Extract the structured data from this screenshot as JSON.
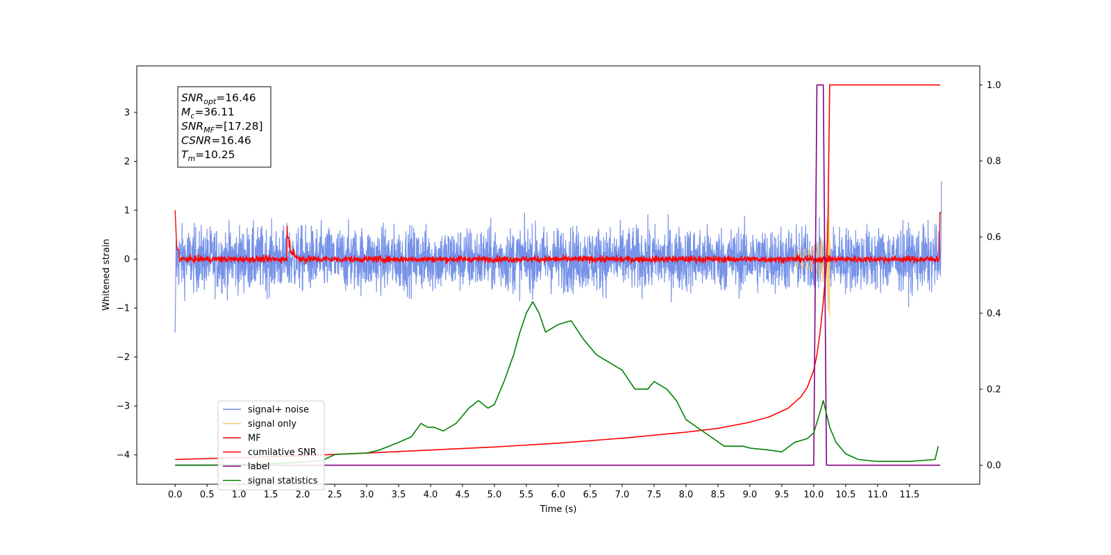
{
  "chart_data": {
    "type": "line",
    "title": "",
    "xlabel": "Time (s)",
    "ylabel": "Whitened strain",
    "y2label": "",
    "xlim": [
      -0.6,
      12.6
    ],
    "ylim": [
      -4.6,
      3.95
    ],
    "y2lim": [
      -0.05,
      1.05
    ],
    "grid": false,
    "legend_position": "lower-left",
    "x_ticks": [
      "0.0",
      "0.5",
      "1.0",
      "1.5",
      "2.0",
      "2.5",
      "3.0",
      "3.5",
      "4.0",
      "4.5",
      "5.0",
      "5.5",
      "6.0",
      "6.5",
      "7.0",
      "7.5",
      "8.0",
      "8.5",
      "9.0",
      "9.5",
      "10.0",
      "10.5",
      "11.0",
      "11.5"
    ],
    "y_ticks": [
      "−4",
      "−3",
      "−2",
      "−1",
      "0",
      "1",
      "2",
      "3"
    ],
    "y2_ticks": [
      "0.0",
      "0.2",
      "0.4",
      "0.6",
      "0.8",
      "1.0"
    ],
    "annotation": [
      {
        "name": "SNR",
        "sub": "opt",
        "text": "=16.46"
      },
      {
        "name": "M",
        "sub": "c",
        "text": "=36.11"
      },
      {
        "name": "SNR",
        "sub": "MF",
        "text": "=[17.28]"
      },
      {
        "name": "CSNR",
        "sub": "",
        "text": "=16.46"
      },
      {
        "name": "T",
        "sub": "m",
        "text": "=10.25"
      }
    ],
    "series": [
      {
        "name": "signal+ noise",
        "color": "#6f8ce8",
        "axis": "left",
        "kind": "noise",
        "band": 0.55,
        "x_range": [
          0,
          12
        ]
      },
      {
        "name": "signal only",
        "color": "#f5c97a",
        "axis": "left",
        "kind": "chirp",
        "x_range": [
          9.7,
          10.3
        ]
      },
      {
        "name": "MF",
        "color": "#ff0000",
        "axis": "left",
        "kind": "mf-output",
        "x_range": [
          0,
          12
        ]
      },
      {
        "name": "cumilative SNR",
        "color": "#ff0000",
        "axis": "right",
        "kind": "line",
        "x": [
          0.0,
          1,
          2,
          3,
          4,
          5,
          6,
          7,
          8,
          8.5,
          9,
          9.3,
          9.6,
          9.8,
          9.9,
          10.0,
          10.05,
          10.1,
          10.15,
          10.2,
          10.22,
          10.25,
          11.98
        ],
        "y": [
          0.015,
          0.02,
          0.025,
          0.032,
          0.04,
          0.048,
          0.058,
          0.071,
          0.087,
          0.097,
          0.113,
          0.127,
          0.15,
          0.18,
          0.205,
          0.25,
          0.29,
          0.35,
          0.43,
          0.53,
          0.6,
          1.0,
          1.0
        ]
      },
      {
        "name": "label",
        "color": "#800080",
        "axis": "right",
        "kind": "step",
        "x": [
          0.0,
          10.0,
          10.05,
          10.15,
          10.2,
          11.98
        ],
        "y": [
          0.0,
          0.0,
          1.0,
          1.0,
          0.0,
          0.0
        ]
      },
      {
        "name": "signal statistics",
        "color": "#008000",
        "axis": "right",
        "kind": "line",
        "x": [
          0.0,
          0.5,
          1.0,
          1.5,
          2.0,
          2.3,
          2.5,
          2.7,
          3.0,
          3.2,
          3.5,
          3.7,
          3.85,
          3.95,
          4.05,
          4.2,
          4.4,
          4.6,
          4.75,
          4.9,
          5.0,
          5.15,
          5.3,
          5.4,
          5.5,
          5.6,
          5.7,
          5.8,
          6.0,
          6.2,
          6.4,
          6.6,
          6.8,
          7.0,
          7.2,
          7.4,
          7.5,
          7.7,
          7.85,
          8.0,
          8.3,
          8.6,
          8.9,
          9.0,
          9.3,
          9.5,
          9.7,
          9.9,
          10.0,
          10.1,
          10.15,
          10.25,
          10.35,
          10.5,
          10.7,
          11.0,
          11.5,
          11.9,
          11.95
        ],
        "y": [
          0.0,
          0.0,
          0.002,
          0.004,
          0.008,
          0.012,
          0.028,
          0.03,
          0.032,
          0.04,
          0.06,
          0.075,
          0.11,
          0.1,
          0.1,
          0.09,
          0.11,
          0.15,
          0.17,
          0.15,
          0.16,
          0.22,
          0.29,
          0.35,
          0.4,
          0.43,
          0.4,
          0.35,
          0.37,
          0.38,
          0.33,
          0.29,
          0.27,
          0.25,
          0.2,
          0.2,
          0.22,
          0.2,
          0.17,
          0.12,
          0.085,
          0.05,
          0.05,
          0.045,
          0.04,
          0.035,
          0.06,
          0.07,
          0.085,
          0.14,
          0.17,
          0.1,
          0.06,
          0.03,
          0.015,
          0.01,
          0.01,
          0.015,
          0.05
        ]
      }
    ]
  }
}
